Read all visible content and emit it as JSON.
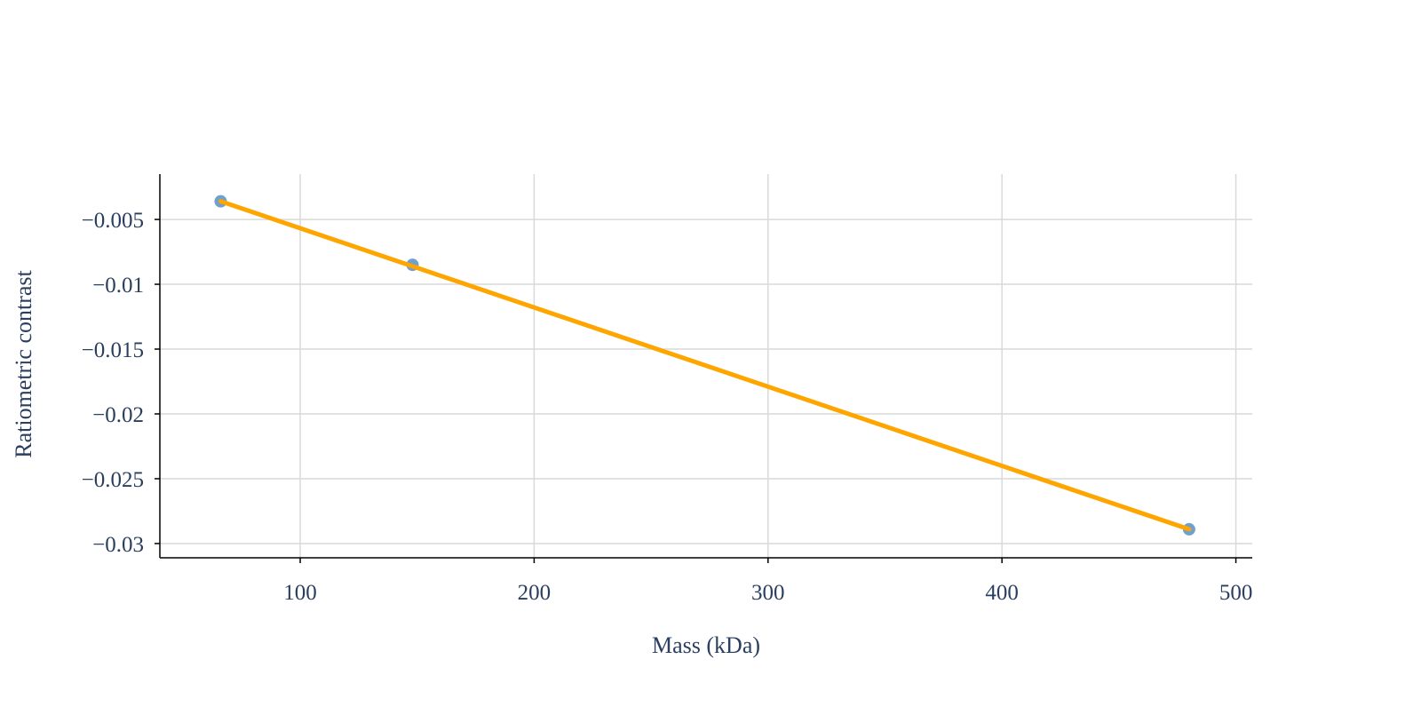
{
  "chart_data": {
    "type": "scatter",
    "title": "",
    "xlabel": "Mass (kDa)",
    "ylabel": "Ratiometric contrast",
    "xlim": [
      40,
      507
    ],
    "ylim": [
      -0.0311,
      -0.0015
    ],
    "grid": true,
    "x_ticks": [
      100,
      200,
      300,
      400,
      500
    ],
    "x_tick_labels": [
      "100",
      "200",
      "300",
      "400",
      "500"
    ],
    "y_ticks": [
      -0.005,
      -0.01,
      -0.015,
      -0.02,
      -0.025,
      -0.03
    ],
    "y_tick_labels": [
      "−0.005",
      "−0.01",
      "−0.015",
      "−0.02",
      "−0.025",
      "−0.03"
    ],
    "series": [
      {
        "mode": "markers",
        "color": "#6fa0cf",
        "x": [
          66,
          148,
          480
        ],
        "y": [
          -0.0036,
          -0.0085,
          -0.0289
        ]
      },
      {
        "mode": "line",
        "color": "#ffa500",
        "x": [
          66,
          480
        ],
        "y": [
          -0.0036,
          -0.0289
        ]
      }
    ]
  }
}
